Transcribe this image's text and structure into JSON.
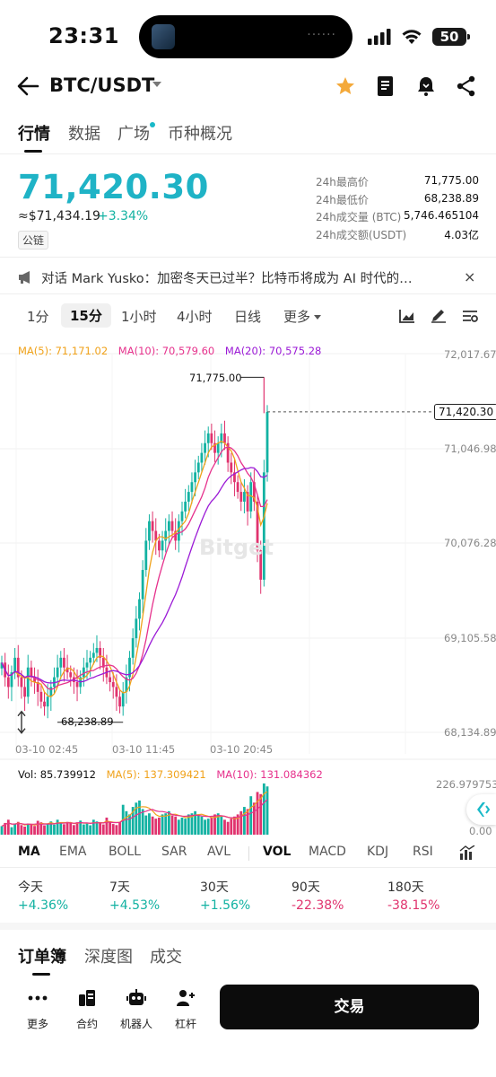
{
  "status": {
    "time": "23:31",
    "battery": "50"
  },
  "nav": {
    "pair": "BTC/USDT"
  },
  "tabs": [
    "行情",
    "数据",
    "广场",
    "币种概况"
  ],
  "price": {
    "last": "71,420.30",
    "fiat": "≈$71,434.19",
    "change": "+3.34%",
    "chain_tag": "公链"
  },
  "stats": [
    {
      "label": "24h最高价",
      "value": "71,775.00"
    },
    {
      "label": "24h最低价",
      "value": "68,238.89"
    },
    {
      "label": "24h成交量 (BTC)",
      "value": "5,746.465104"
    },
    {
      "label": "24h成交额(USDT)",
      "value": "4.03亿"
    }
  ],
  "news": {
    "text": "对话 Mark Yusko：加密冬天已过半？比特币将成为 AI 时代的…",
    "close": "×"
  },
  "intervals": [
    "1分",
    "15分",
    "1小时",
    "4小时",
    "日线",
    "更多"
  ],
  "chart": {
    "ma": {
      "ma5": "MA(5): 71,171.02",
      "ma10": "MA(10): 70,579.60",
      "ma20": "MA(20): 70,575.28"
    },
    "y_labels": [
      "72,017.67",
      "71,046.98",
      "70,076.28",
      "69,105.58",
      "68,134.89"
    ],
    "x_labels": [
      "03-10 02:45",
      "03-10 11:45",
      "03-10 20:45"
    ],
    "high_marker": "71,775.00",
    "low_marker": "68,238.89",
    "current_price": "71,420.30",
    "watermark": "Bitget",
    "vol": {
      "vol": "Vol: 85.739912",
      "ma5": "MA(5): 137.309421",
      "ma10": "MA(10): 131.084362"
    },
    "vol_top": "226.979753",
    "vol_bottom": "0.00"
  },
  "colors": {
    "accent": "#1fb3c6",
    "up": "#13b2a2",
    "down": "#e0336e",
    "ma5": "#f0a21a",
    "ma10": "#e6318c",
    "ma20": "#9b1ad6"
  },
  "chart_data": {
    "type": "candlestick",
    "interval": "15分",
    "y_range": [
      68134.89,
      72017.67
    ],
    "x_ticks": [
      "03-10 02:45",
      "03-10 11:45",
      "03-10 20:45"
    ],
    "high": 71775.0,
    "low": 68238.89,
    "last": 71420.3,
    "close_series": [
      68850,
      68700,
      68600,
      68750,
      68900,
      68700,
      68600,
      68500,
      68800,
      68700,
      68650,
      68550,
      68450,
      68400,
      68500,
      68600,
      68700,
      68800,
      68900,
      68800,
      68750,
      68700,
      68650,
      68600,
      68700,
      68800,
      68850,
      68900,
      68950,
      69000,
      68900,
      68800,
      68700,
      68650,
      68600,
      68500,
      68400,
      68550,
      68700,
      68900,
      69100,
      69300,
      69500,
      69800,
      70100,
      70300,
      70200,
      70100,
      70000,
      70100,
      70200,
      70300,
      70200,
      70100,
      70300,
      70400,
      70500,
      70600,
      70700,
      70800,
      70900,
      71000,
      71100,
      71200,
      71100,
      71000,
      71100,
      71200,
      71100,
      70900,
      70800,
      70700,
      70600,
      70500,
      70600,
      70400,
      70700,
      70500,
      70000,
      69700,
      70800,
      71420
    ],
    "volume_series": [
      40,
      55,
      70,
      35,
      50,
      60,
      45,
      38,
      52,
      48,
      41,
      65,
      58,
      44,
      50,
      62,
      47,
      70,
      55,
      49,
      60,
      53,
      45,
      58,
      66,
      48,
      52,
      44,
      70,
      62,
      55,
      48,
      80,
      60,
      50,
      45,
      58,
      140,
      110,
      95,
      130,
      150,
      160,
      120,
      90,
      100,
      85,
      75,
      80,
      95,
      100,
      110,
      90,
      85,
      70,
      80,
      75,
      95,
      100,
      110,
      90,
      85,
      70,
      75,
      80,
      95,
      100,
      85,
      70,
      60,
      75,
      85,
      95,
      110,
      130,
      120,
      180,
      150,
      200,
      190,
      240,
      226
    ]
  },
  "indicators": [
    "MA",
    "EMA",
    "BOLL",
    "SAR",
    "AVL",
    "VOL",
    "MACD",
    "KDJ",
    "RSI"
  ],
  "performance": [
    {
      "label": "今天",
      "value": "+4.36%"
    },
    {
      "label": "7天",
      "value": "+4.53%"
    },
    {
      "label": "30天",
      "value": "+1.56%"
    },
    {
      "label": "90天",
      "value": "-22.38%"
    },
    {
      "label": "180天",
      "value": "-38.15%"
    }
  ],
  "orderbook_tabs": [
    "订单簿",
    "深度图",
    "成交"
  ],
  "bottom": {
    "more": "更多",
    "contract": "合约",
    "robot": "机器人",
    "leverage": "杠杆",
    "trade": "交易"
  }
}
